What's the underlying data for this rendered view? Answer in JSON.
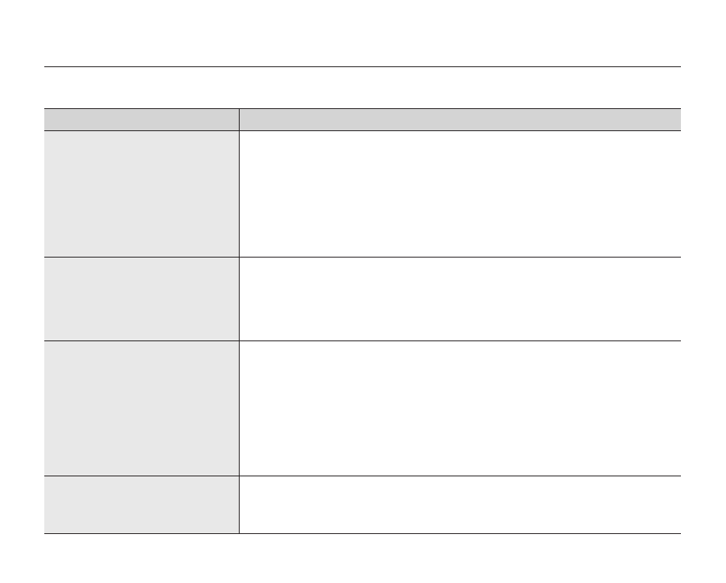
{
  "colors": {
    "header_bg": "#d4d4d4",
    "label_column_bg": "#e8e8e8",
    "line": "#231f20"
  },
  "table": {
    "header": [
      "",
      ""
    ],
    "rows": [
      [
        "",
        ""
      ],
      [
        "",
        ""
      ],
      [
        "",
        ""
      ],
      [
        "",
        ""
      ]
    ]
  }
}
